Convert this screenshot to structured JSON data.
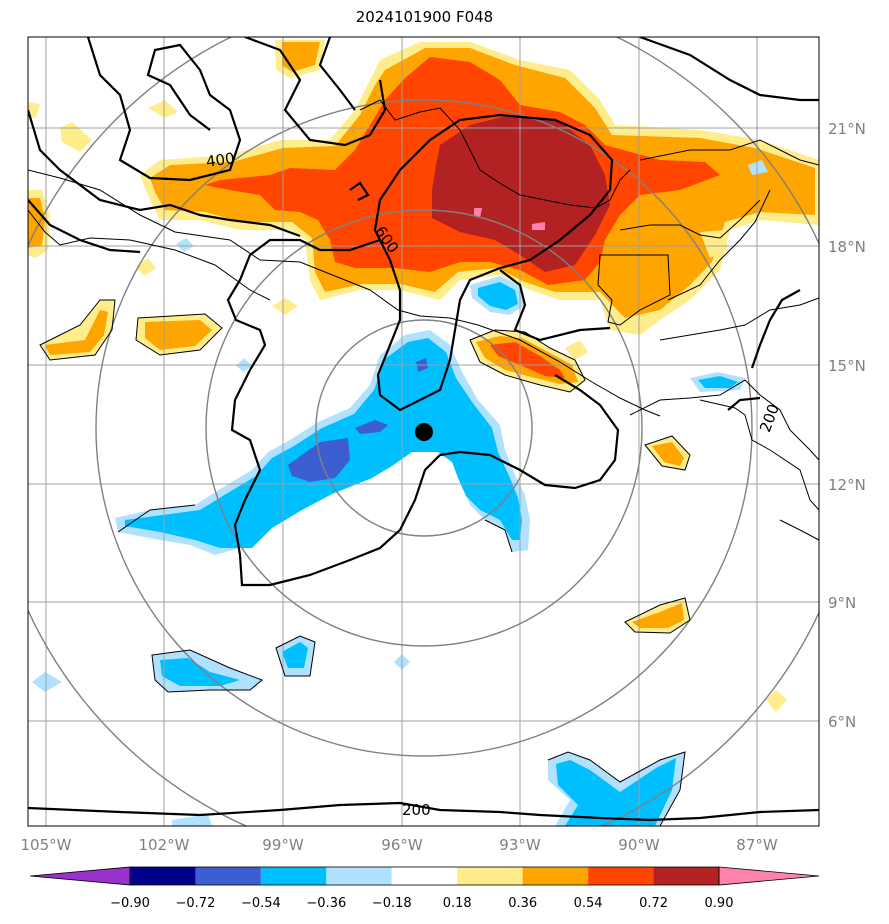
{
  "title": "2024101900 F048",
  "lon_labels": [
    "105°W",
    "102°W",
    "99°W",
    "96°W",
    "93°W",
    "90°W",
    "87°W"
  ],
  "lat_labels": [
    "21°N",
    "18°N",
    "15°N",
    "12°N",
    "9°N",
    "6°N"
  ],
  "contour_labels": [
    "400",
    "600",
    "200",
    "200"
  ],
  "colorbar": {
    "colors": [
      "#9932cc",
      "#00008b",
      "#3c5ed0",
      "#00bfff",
      "#b0e2ff",
      "#ffffff",
      "#ffec8b",
      "#ffa500",
      "#ff4500",
      "#b22222",
      "#ff82ab"
    ],
    "tick_labels": [
      "−0.90",
      "−0.72",
      "−0.54",
      "−0.36",
      "−0.18",
      "0.18",
      "0.36",
      "0.54",
      "0.72",
      "0.90"
    ]
  },
  "map_elements": {
    "storm_center_marker": "filled-circle",
    "range_rings": "concentric circles around storm center",
    "grid": true
  }
}
